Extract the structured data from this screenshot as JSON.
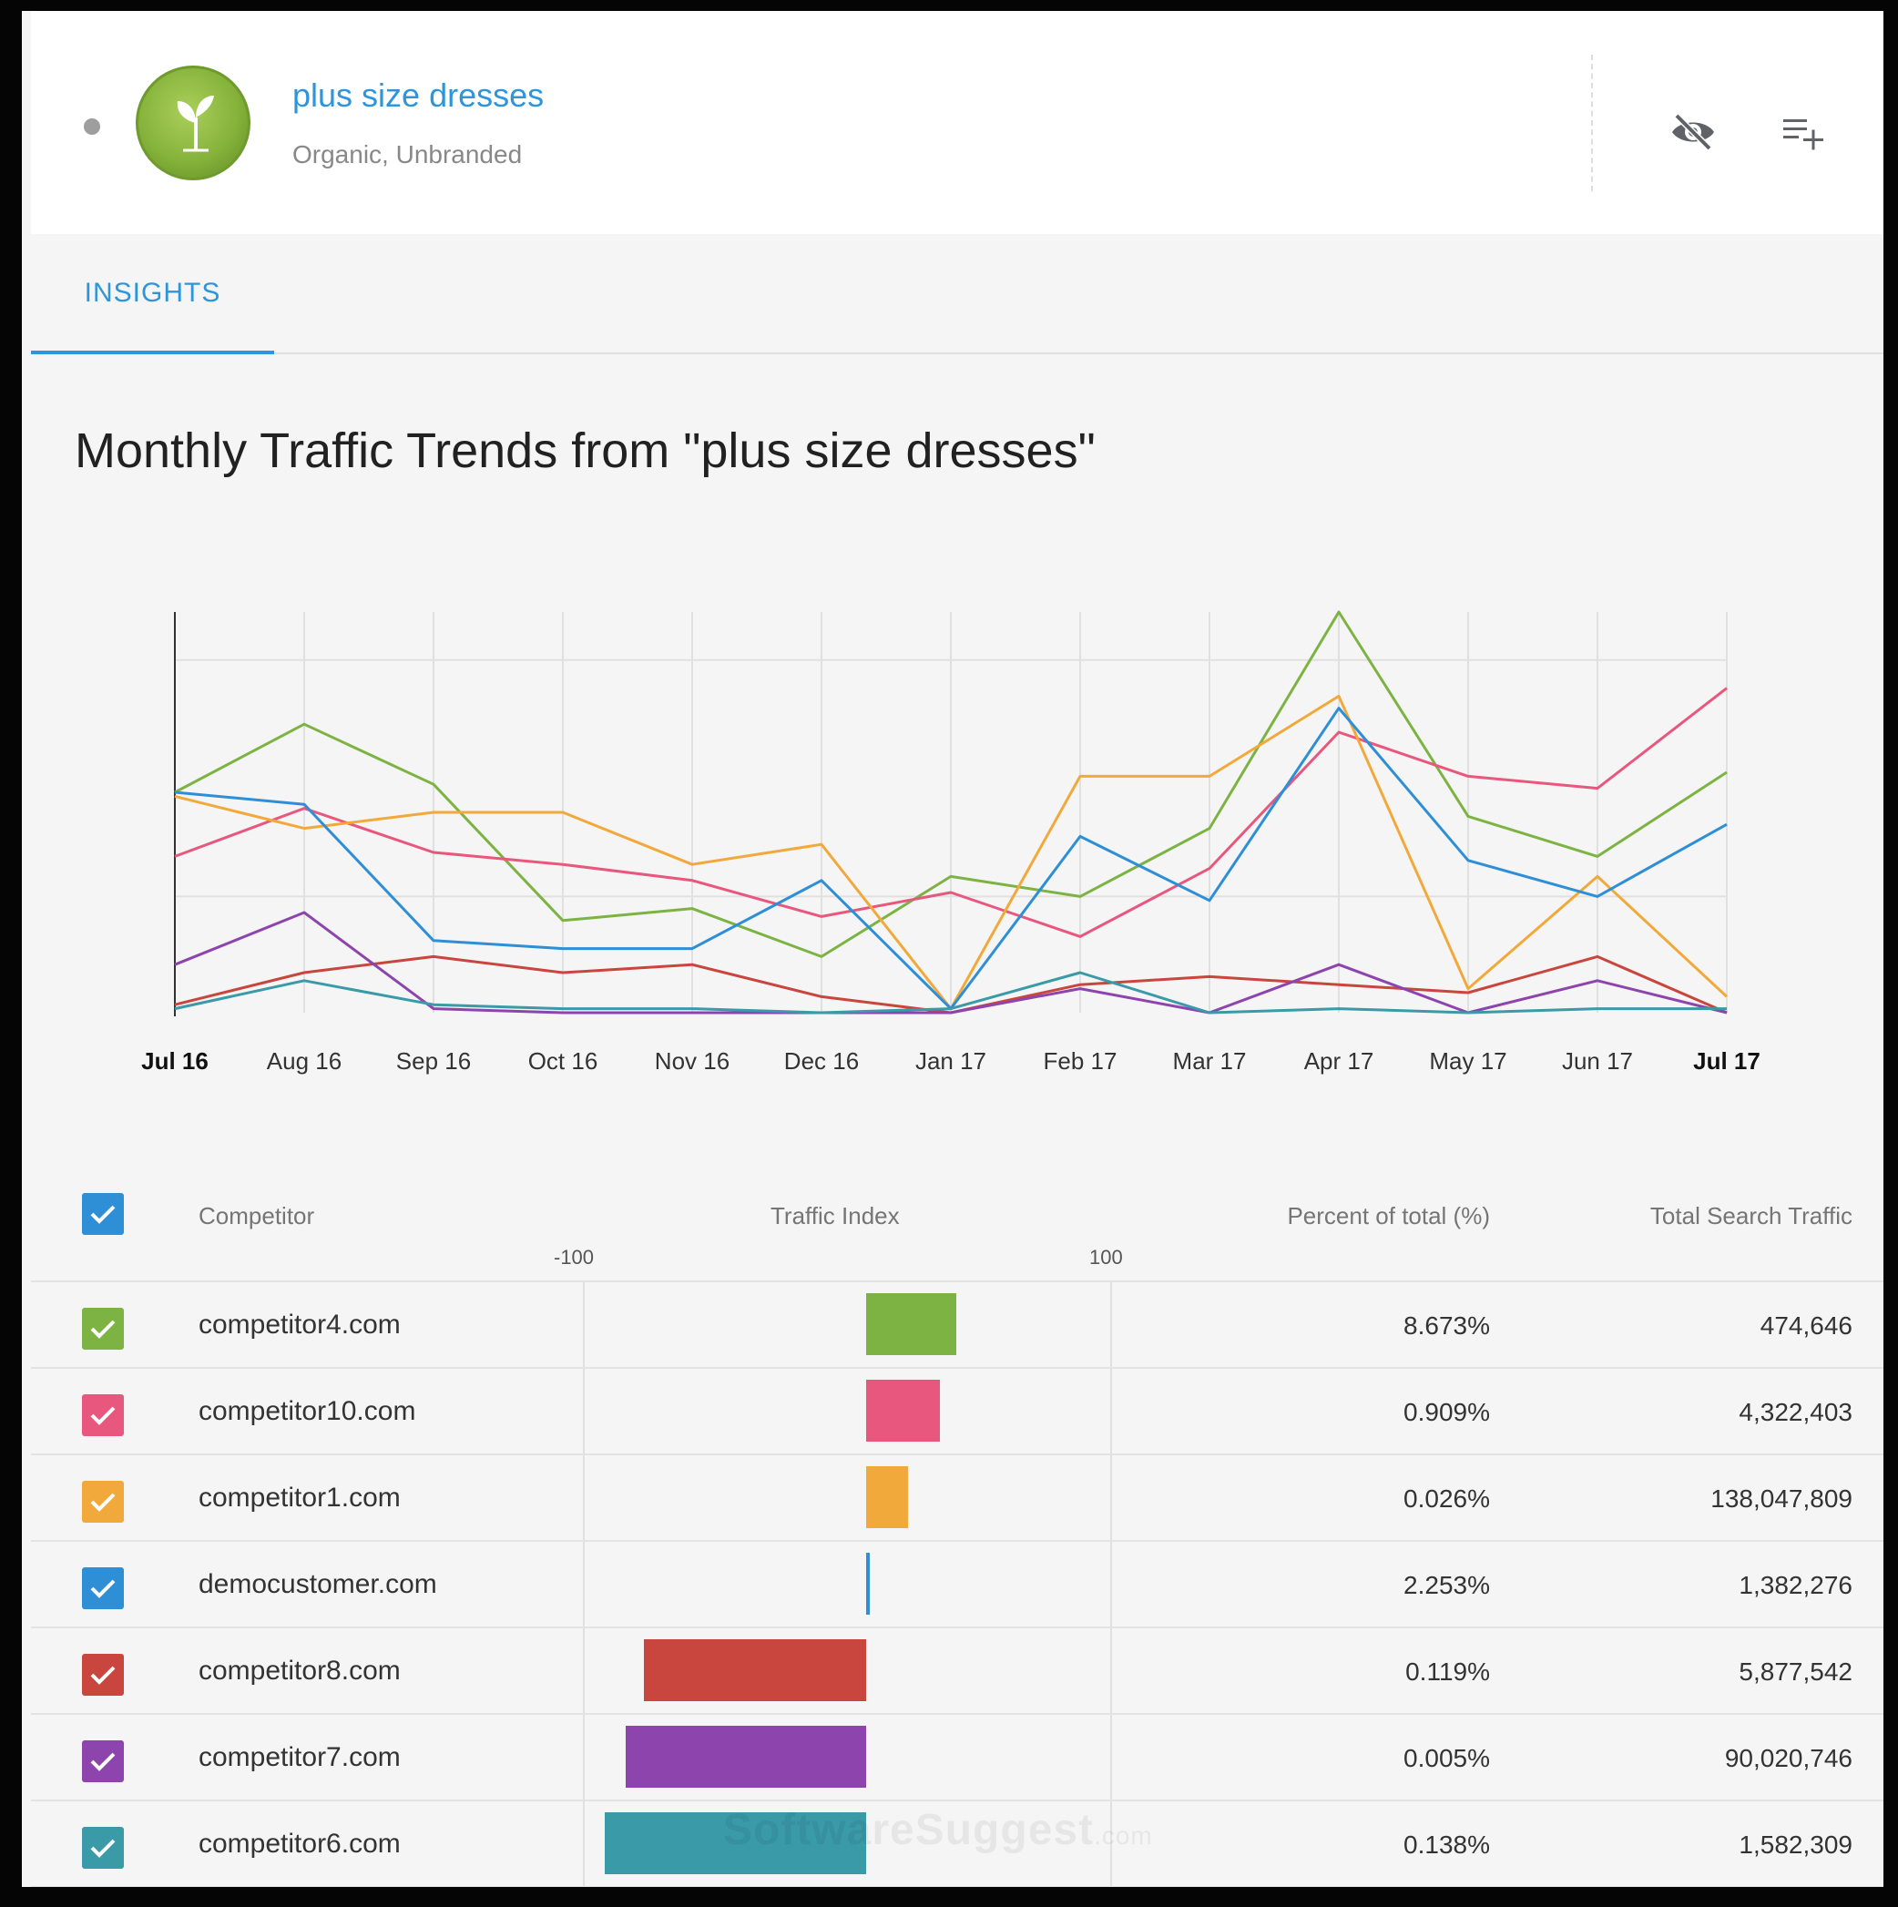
{
  "keyword": {
    "title": "plus size dresses",
    "subtitle": "Organic, Unbranded"
  },
  "icons": {
    "logo": "sprout-logo-icon",
    "hide": "visibility-off-icon",
    "add_to_list": "playlist-add-icon",
    "checkbox": "check-icon"
  },
  "tabs": [
    {
      "label": "INSIGHTS",
      "active": true
    }
  ],
  "chart_title": "Monthly Traffic Trends from \"plus size dresses\"",
  "chart_data": {
    "type": "line",
    "x": [
      "Jul 16",
      "Aug 16",
      "Sep 16",
      "Oct 16",
      "Nov 16",
      "Dec 16",
      "Jan 17",
      "Feb 17",
      "Mar 17",
      "Apr 17",
      "May 17",
      "Jun 17",
      "Jul 17"
    ],
    "bold_ticks": [
      "Jul 16",
      "Jul 17"
    ],
    "ylim": [
      0,
      100
    ],
    "grid": true,
    "series": [
      {
        "color": "#7cb342",
        "values": [
          55,
          72,
          57,
          23,
          26,
          14,
          34,
          29,
          46,
          100,
          49,
          39,
          60
        ]
      },
      {
        "color": "#e8577d",
        "values": [
          39,
          51,
          40,
          37,
          33,
          24,
          30,
          19,
          36,
          70,
          59,
          56,
          81
        ]
      },
      {
        "color": "#f2a93b",
        "values": [
          54,
          46,
          50,
          50,
          37,
          42,
          1,
          59,
          59,
          79,
          6,
          34,
          4
        ]
      },
      {
        "color": "#2e8fd6",
        "values": [
          55,
          52,
          18,
          16,
          16,
          33,
          1,
          44,
          28,
          76,
          38,
          29,
          47
        ]
      },
      {
        "color": "#c8463d",
        "values": [
          2,
          10,
          14,
          10,
          12,
          4,
          0,
          7,
          9,
          7,
          5,
          14,
          0
        ]
      },
      {
        "color": "#8e44ad",
        "values": [
          12,
          25,
          1,
          0,
          0,
          0,
          0,
          6,
          0,
          12,
          0,
          8,
          0
        ]
      },
      {
        "color": "#3a9aa8",
        "values": [
          1,
          8,
          2,
          1,
          1,
          0,
          1,
          10,
          0,
          1,
          0,
          1,
          1
        ]
      }
    ]
  },
  "table": {
    "headers": {
      "competitor": "Competitor",
      "traffic_index": "Traffic Index",
      "percent": "Percent of total (%)",
      "total": "Total Search Traffic"
    },
    "axis": {
      "min_label": "-100",
      "max_label": "100",
      "min": -100,
      "max": 100
    },
    "header_checkbox_color": "#2e8fd6",
    "rows": [
      {
        "name": "competitor4.com",
        "color": "#7cb342",
        "index": 34,
        "percent": "8.673%",
        "total": "474,646"
      },
      {
        "name": "competitor10.com",
        "color": "#e8577d",
        "index": 28,
        "percent": "0.909%",
        "total": "4,322,403"
      },
      {
        "name": "competitor1.com",
        "color": "#f2a93b",
        "index": 16,
        "percent": "0.026%",
        "total": "138,047,809"
      },
      {
        "name": "democustomer.com",
        "color": "#2e8fd6",
        "index": 1,
        "percent": "2.253%",
        "total": "1,382,276"
      },
      {
        "name": "competitor8.com",
        "color": "#c8463d",
        "index": -84,
        "percent": "0.119%",
        "total": "5,877,542"
      },
      {
        "name": "competitor7.com",
        "color": "#8e44ad",
        "index": -91,
        "percent": "0.005%",
        "total": "90,020,746"
      },
      {
        "name": "competitor6.com",
        "color": "#3a9aa8",
        "index": -99,
        "percent": "0.138%",
        "total": "1,582,309"
      }
    ]
  },
  "watermark": {
    "brand": "SoftwareSuggest",
    "suffix": ".com"
  }
}
